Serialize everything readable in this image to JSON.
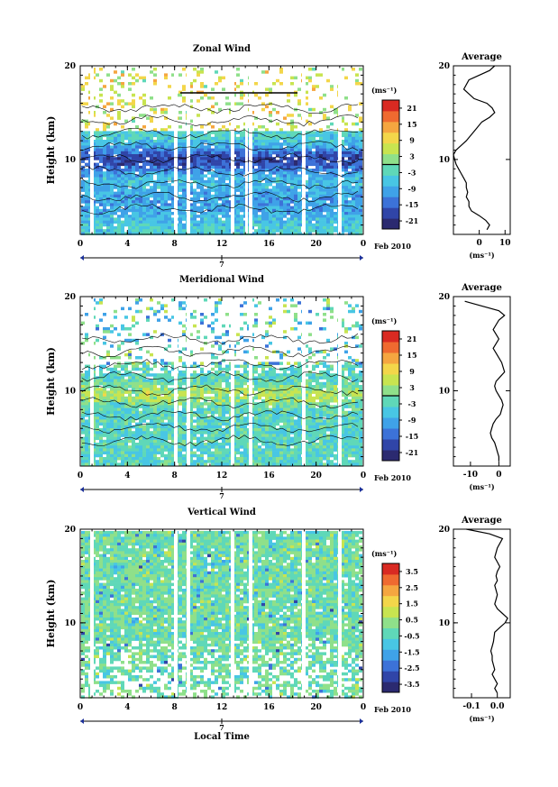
{
  "chart_data": [
    {
      "type": "heatmap",
      "title": "Zonal Wind",
      "ylabel": "Height (km)",
      "yticks": [
        "20",
        "10"
      ],
      "xticks": [
        "0",
        "4",
        "8",
        "12",
        "16",
        "20",
        "0"
      ],
      "date_mark": "7",
      "date_label": "Feb 2010",
      "colorbar": {
        "unit": "(ms⁻¹)",
        "levels": [
          "21",
          "15",
          "9",
          "3",
          "-3",
          "-9",
          "-15",
          "-21"
        ],
        "range": [
          -24,
          24
        ],
        "zero_line": 0
      },
      "profile": {
        "title": "Average",
        "xticks": [
          "0",
          "10"
        ],
        "xlim": [
          -10,
          12
        ],
        "xlabel": "(ms⁻¹)",
        "yticks": [
          "20",
          "10"
        ],
        "ylim": [
          2,
          20
        ],
        "x": [
          3,
          4,
          2.5,
          0,
          -3,
          -4,
          -4,
          -5,
          -4.5,
          -5,
          -5,
          -6,
          -7,
          -8,
          -9,
          -9.5,
          -10,
          -9,
          -7,
          -5,
          -2,
          1,
          4,
          6,
          5,
          3,
          -2,
          -6,
          -4,
          0,
          4,
          6
        ],
        "y": [
          2.5,
          3.0,
          3.5,
          4.0,
          4.5,
          5.0,
          5.5,
          6.0,
          6.5,
          7.0,
          7.5,
          8.0,
          8.5,
          9.0,
          9.5,
          10.0,
          10.5,
          11.0,
          11.5,
          12.0,
          13.0,
          14.0,
          14.5,
          15.0,
          15.5,
          16.0,
          16.5,
          17.5,
          18.5,
          19.0,
          19.5,
          20.0
        ]
      }
    },
    {
      "type": "heatmap",
      "title": "Meridional Wind",
      "ylabel": "Height (km)",
      "yticks": [
        "20",
        "10"
      ],
      "xticks": [
        "0",
        "4",
        "8",
        "12",
        "16",
        "20",
        "0"
      ],
      "date_mark": "7",
      "date_label": "Feb 2010",
      "colorbar": {
        "unit": "(ms⁻¹)",
        "levels": [
          "21",
          "15",
          "9",
          "3",
          "-3",
          "-9",
          "-15",
          "-21"
        ],
        "range": [
          -24,
          24
        ],
        "zero_line": 0
      },
      "profile": {
        "title": "Average",
        "xticks": [
          "-10",
          "0"
        ],
        "xlim": [
          -16,
          4
        ],
        "xlabel": "(ms⁻¹)",
        "yticks": [
          "20",
          "10"
        ],
        "ylim": [
          2,
          20
        ],
        "x": [
          0,
          0,
          -0.5,
          -1,
          -1.5,
          -2.5,
          -3,
          -2.5,
          -2,
          -1,
          0.5,
          1,
          1.5,
          1,
          0,
          -1,
          -1.5,
          -1,
          0.5,
          2,
          1,
          -1,
          -2,
          -1,
          0,
          -1,
          -2,
          0,
          2,
          0,
          -6,
          -12
        ],
        "y": [
          2.5,
          3.0,
          3.5,
          4.0,
          4.5,
          5.0,
          5.5,
          6.0,
          6.5,
          7.0,
          7.5,
          8.0,
          8.5,
          9.0,
          9.5,
          10.0,
          10.5,
          11.0,
          11.5,
          12.0,
          13.0,
          14.0,
          14.5,
          15.0,
          15.5,
          16.0,
          16.5,
          17.5,
          18.0,
          18.5,
          19.0,
          19.5
        ]
      }
    },
    {
      "type": "heatmap",
      "title": "Vertical Wind",
      "ylabel": "Height (km)",
      "yticks": [
        "20",
        "10"
      ],
      "xticks": [
        "0",
        "4",
        "8",
        "12",
        "16",
        "20",
        "0"
      ],
      "date_mark": "7",
      "date_label": "Feb 2010",
      "xlabel": "Local Time",
      "colorbar": {
        "unit": "(ms⁻¹)",
        "levels": [
          "3.5",
          "2.5",
          "1.5",
          "0.5",
          "-0.5",
          "-1.5",
          "-2.5",
          "-3.5"
        ],
        "range": [
          -4,
          4
        ]
      },
      "profile": {
        "title": "Average",
        "xticks": [
          "-0.1",
          "0.0"
        ],
        "xlim": [
          -0.17,
          0.05
        ],
        "xlabel": "(ms⁻¹)",
        "yticks": [
          "20",
          "10"
        ],
        "ylim": [
          2,
          20
        ],
        "x": [
          0.0,
          -0.01,
          0.0,
          -0.01,
          -0.02,
          -0.01,
          -0.015,
          -0.02,
          -0.02,
          -0.025,
          -0.02,
          -0.015,
          -0.01,
          0.01,
          0.03,
          0.04,
          0.02,
          0.0,
          -0.01,
          -0.005,
          0.0,
          -0.01,
          0.0,
          -0.005,
          0.0,
          0.01,
          0.0,
          -0.01,
          0.0,
          0.02,
          -0.03,
          -0.12
        ],
        "y": [
          2.5,
          3.0,
          3.5,
          4.0,
          4.5,
          5.0,
          5.5,
          6.0,
          6.5,
          7.0,
          7.5,
          8.0,
          9.0,
          9.5,
          10.0,
          10.5,
          11.0,
          11.5,
          12.0,
          12.5,
          13.0,
          14.0,
          14.5,
          15.0,
          15.5,
          16.0,
          16.5,
          17.0,
          18.0,
          19.0,
          19.5,
          20.0
        ]
      }
    }
  ],
  "colors": {
    "palette": [
      "#2b2a70",
      "#3045a8",
      "#3c72d8",
      "#3fa2e8",
      "#48c6e4",
      "#5fd8b8",
      "#8fe08a",
      "#c8e450",
      "#f3d64a",
      "#f5a640",
      "#ef6a30",
      "#d92a22"
    ]
  }
}
